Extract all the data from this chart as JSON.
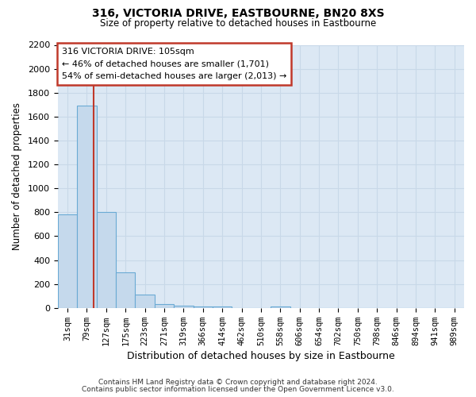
{
  "title": "316, VICTORIA DRIVE, EASTBOURNE, BN20 8XS",
  "subtitle": "Size of property relative to detached houses in Eastbourne",
  "xlabel": "Distribution of detached houses by size in Eastbourne",
  "ylabel": "Number of detached properties",
  "bar_labels": [
    "31sqm",
    "79sqm",
    "127sqm",
    "175sqm",
    "223sqm",
    "271sqm",
    "319sqm",
    "366sqm",
    "414sqm",
    "462sqm",
    "510sqm",
    "558sqm",
    "606sqm",
    "654sqm",
    "702sqm",
    "750sqm",
    "798sqm",
    "846sqm",
    "894sqm",
    "941sqm",
    "989sqm"
  ],
  "bar_values": [
    780,
    1690,
    800,
    295,
    110,
    35,
    20,
    10,
    10,
    0,
    0,
    15,
    0,
    0,
    0,
    0,
    0,
    0,
    0,
    0,
    0
  ],
  "bar_color": "#c5d9ec",
  "bar_edge_color": "#6aaad4",
  "bar_edge_width": 0.8,
  "vline_x": 1.35,
  "vline_color": "#c0392b",
  "ylim": [
    0,
    2200
  ],
  "yticks": [
    0,
    200,
    400,
    600,
    800,
    1000,
    1200,
    1400,
    1600,
    1800,
    2000,
    2200
  ],
  "annotation_text": "316 VICTORIA DRIVE: 105sqm\n← 46% of detached houses are smaller (1,701)\n54% of semi-detached houses are larger (2,013) →",
  "annotation_box_color": "#ffffff",
  "annotation_box_edge": "#c0392b",
  "footer_line1": "Contains HM Land Registry data © Crown copyright and database right 2024.",
  "footer_line2": "Contains public sector information licensed under the Open Government Licence v3.0.",
  "grid_color": "#c8d8e8",
  "fig_bg_color": "#ffffff",
  "plot_bg_color": "#dce8f4"
}
